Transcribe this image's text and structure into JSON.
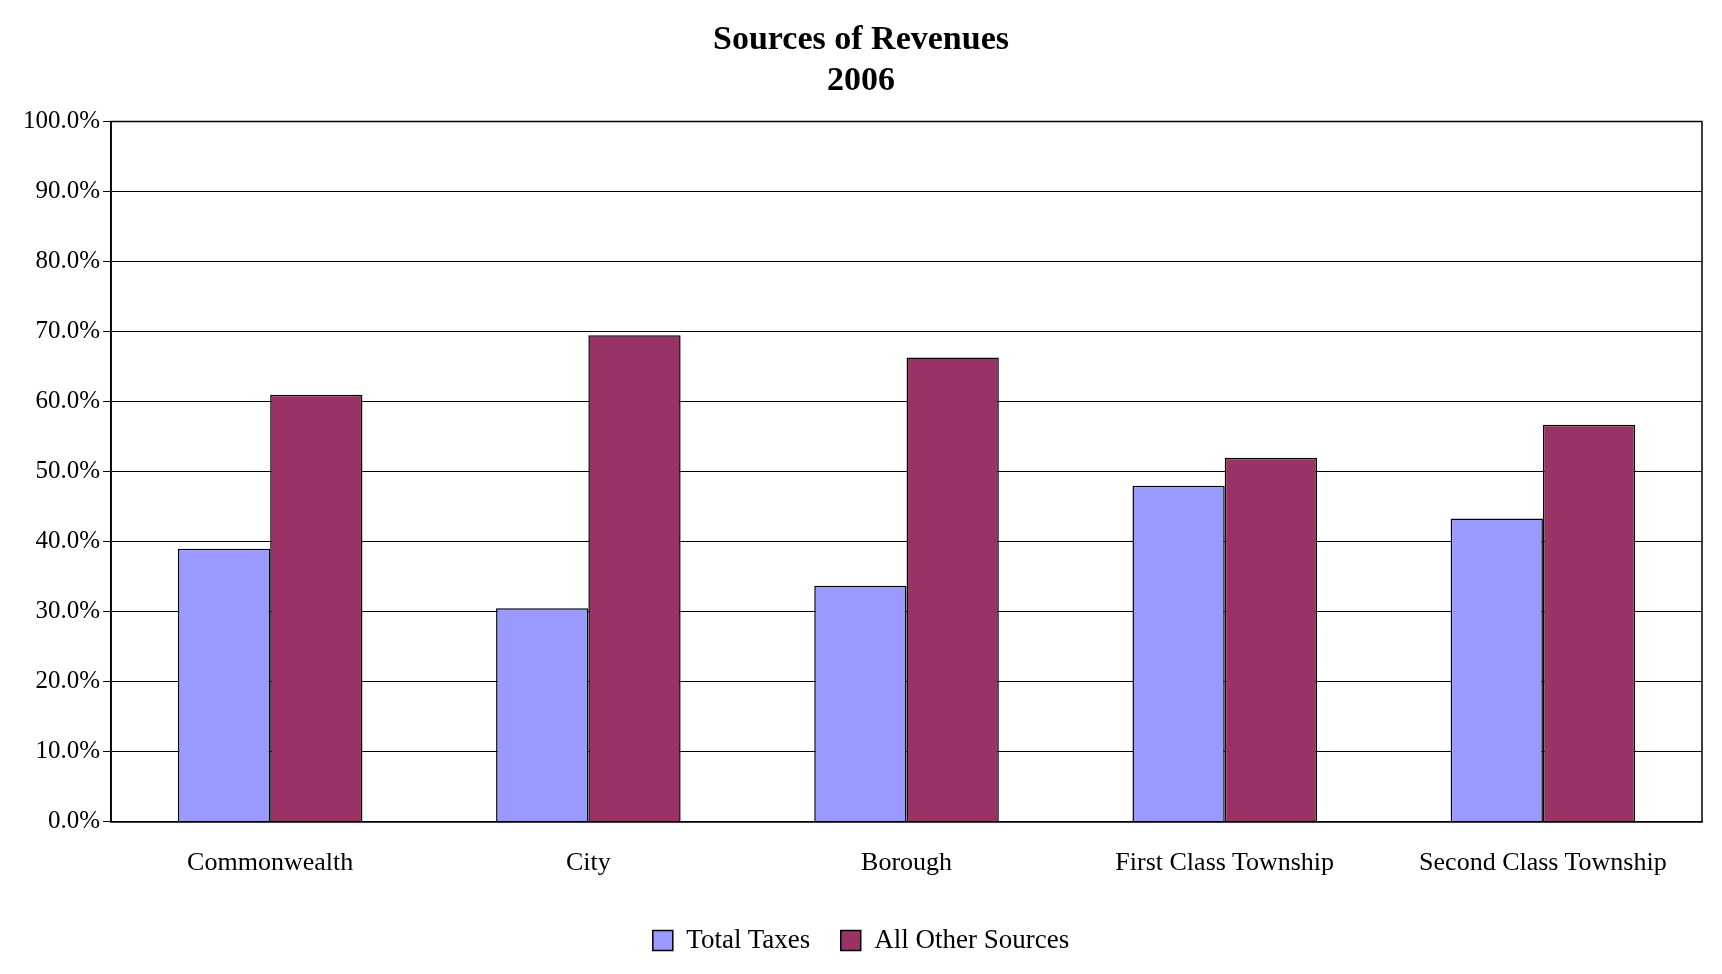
{
  "chart_data": {
    "type": "bar",
    "title": [
      "Sources of Revenues",
      "2006"
    ],
    "categories": [
      "Commonwealth",
      "City",
      "Borough",
      "First Class Township",
      "Second Class Township"
    ],
    "series": [
      {
        "name": "Total Taxes",
        "color": "#9999ff",
        "values": [
          39.0,
          30.5,
          33.7,
          48.0,
          43.3
        ]
      },
      {
        "name": "All Other Sources",
        "color": "#993366",
        "values": [
          61.0,
          69.5,
          66.3,
          52.0,
          56.7
        ]
      }
    ],
    "ylim": [
      0,
      100
    ],
    "yticks": [
      {
        "value": 0,
        "label": "0.0%"
      },
      {
        "value": 10,
        "label": "10.0%"
      },
      {
        "value": 20,
        "label": "20.0%"
      },
      {
        "value": 30,
        "label": "30.0%"
      },
      {
        "value": 40,
        "label": "40.0%"
      },
      {
        "value": 50,
        "label": "50.0%"
      },
      {
        "value": 60,
        "label": "60.0%"
      },
      {
        "value": 70,
        "label": "70.0%"
      },
      {
        "value": 80,
        "label": "80.0%"
      },
      {
        "value": 90,
        "label": "90.0%"
      },
      {
        "value": 100,
        "label": "100.0%"
      }
    ],
    "grid": "y",
    "legend": "bottom"
  }
}
